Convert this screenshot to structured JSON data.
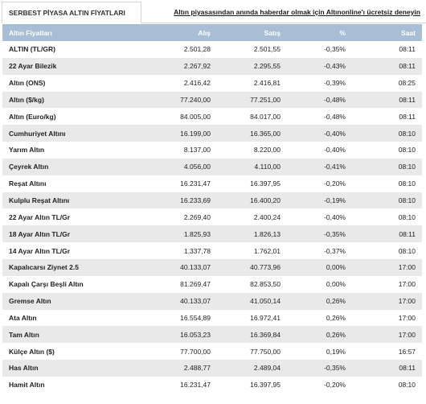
{
  "tab": {
    "label": "SERBEST PİYASA ALTIN FİYATLARI"
  },
  "promo": {
    "text": "Altın piyasasından anında haberdar olmak için Altınonline'ı ücretsiz deneyin"
  },
  "table": {
    "headers": [
      "Altın Fiyatları",
      "Alış",
      "Satış",
      "%",
      "Saat"
    ],
    "rows": [
      [
        "ALTIN (TL/GR)",
        "2.501,28",
        "2.501,55",
        "-0,35%",
        "08:11"
      ],
      [
        "22 Ayar Bilezik",
        "2.267,92",
        "2.295,55",
        "-0,43%",
        "08:11"
      ],
      [
        "Altın (ONS)",
        "2.416,42",
        "2.416,81",
        "-0,39%",
        "08:25"
      ],
      [
        "Altın ($/kg)",
        "77.240,00",
        "77.251,00",
        "-0,48%",
        "08:11"
      ],
      [
        "Altın (Euro/kg)",
        "84.005,00",
        "84.017,00",
        "-0,48%",
        "08:11"
      ],
      [
        "Cumhuriyet Altını",
        "16.199,00",
        "16.365,00",
        "-0,40%",
        "08:10"
      ],
      [
        "Yarım Altın",
        "8.137,00",
        "8.220,00",
        "-0,40%",
        "08:10"
      ],
      [
        "Çeyrek Altın",
        "4.056,00",
        "4.110,00",
        "-0,41%",
        "08:10"
      ],
      [
        "Reşat Altını",
        "16.231,47",
        "16.397,95",
        "-0,20%",
        "08:10"
      ],
      [
        "Kulplu Reşat Altını",
        "16.233,69",
        "16.400,20",
        "-0,19%",
        "08:10"
      ],
      [
        "22 Ayar Altın TL/Gr",
        "2.269,40",
        "2.400,24",
        "-0,40%",
        "08:10"
      ],
      [
        "18 Ayar Altın TL/Gr",
        "1.825,93",
        "1.826,13",
        "-0,35%",
        "08:11"
      ],
      [
        "14 Ayar Altın TL/Gr",
        "1.337,78",
        "1.762,01",
        "-0,37%",
        "08:10"
      ],
      [
        "Kapalıcarsı Ziynet 2.5",
        "40.133,07",
        "40.773,96",
        "0,00%",
        "17:00"
      ],
      [
        "Kapalı Çarşı Beşli Altın",
        "81.269,47",
        "82.853,50",
        "0,00%",
        "17:00"
      ],
      [
        "Gremse Altın",
        "40.133,07",
        "41.050,14",
        "0,26%",
        "17:00"
      ],
      [
        "Ata Altın",
        "16.554,89",
        "16.972,41",
        "0,26%",
        "17:00"
      ],
      [
        "Tam Altın",
        "16.053,23",
        "16.369,84",
        "0,26%",
        "17:00"
      ],
      [
        "Külçe Altın ($)",
        "77.700,00",
        "77.750,00",
        "0,19%",
        "16:57"
      ],
      [
        "Has Altın",
        "2.488,77",
        "2.489,04",
        "-0,35%",
        "08:11"
      ],
      [
        "Hamit Altın",
        "16.231,47",
        "16.397,95",
        "-0,20%",
        "08:10"
      ]
    ]
  },
  "colors": {
    "header_bg": "#a8bed4",
    "row_alt": "#e9e9e9"
  }
}
